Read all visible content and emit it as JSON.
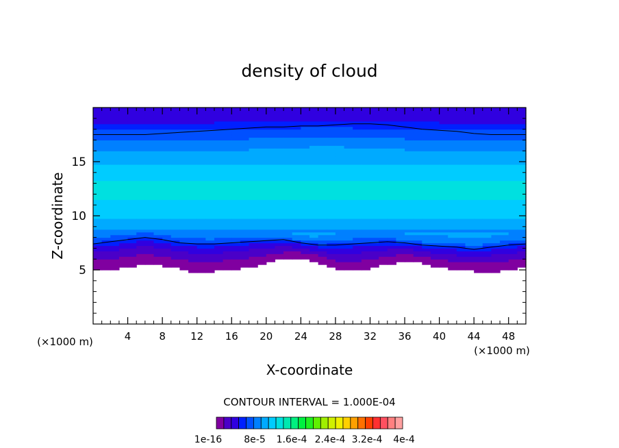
{
  "chart_data": {
    "type": "heatmap",
    "title": "density of cloud",
    "xlabel": "X-coordinate",
    "ylabel": "Z-coordinate",
    "x_unit": "(×1000 m)",
    "y_unit": "(×1000 m)",
    "xlim": [
      0,
      50
    ],
    "ylim": [
      0,
      20
    ],
    "x_ticks": [
      "4",
      "8",
      "12",
      "16",
      "20",
      "24",
      "28",
      "32",
      "36",
      "40",
      "44",
      "48"
    ],
    "y_ticks": [
      "5",
      "10",
      "15"
    ],
    "contour_interval_text": "CONTOUR INTERVAL = 1.000E-04",
    "colorbar_labels": [
      "1e-16",
      "8e-5",
      "1.6e-4",
      "2.4e-4",
      "3.2e-4",
      "4e-4"
    ],
    "colorbar_colors": [
      "#8000a0",
      "#4a00c8",
      "#3000e0",
      "#0020ff",
      "#0050ff",
      "#0080ff",
      "#00aaff",
      "#00ccff",
      "#00e0e0",
      "#00e8b0",
      "#00f080",
      "#00f040",
      "#20f020",
      "#60f000",
      "#a0f000",
      "#d0f000",
      "#f0f000",
      "#ffd000",
      "#ffa000",
      "#ff7000",
      "#ff4000",
      "#ff3030",
      "#ff5060",
      "#ff8080",
      "#ffa0a0"
    ],
    "field_profile": {
      "z": [
        4.8,
        5.5,
        6.0,
        6.5,
        7.0,
        7.5,
        8.0,
        9.0,
        10.0,
        11.0,
        12.0,
        13.0,
        14.0,
        15.0,
        16.0,
        17.0,
        17.5,
        18.0,
        18.5,
        19.0,
        20.0
      ],
      "value": [
        1e-16,
        1e-05,
        2e-05,
        3e-05,
        4e-05,
        6e-05,
        8e-05,
        0.0001,
        0.000115,
        0.000125,
        0.000132,
        0.00013,
        0.000122,
        0.00011,
        9.5e-05,
        8e-05,
        7e-05,
        6.3e-05,
        5e-05,
        4e-05,
        3.3e-05
      ]
    },
    "cloud_base_x": [
      0,
      2,
      4,
      6,
      8,
      10,
      12,
      14,
      16,
      18,
      20,
      22,
      24,
      26,
      28,
      30,
      32,
      34,
      36,
      38,
      40,
      42,
      44,
      46,
      48,
      50
    ],
    "cloud_base_z": [
      5.0,
      5.0,
      5.3,
      5.6,
      5.4,
      5.1,
      4.8,
      4.9,
      5.0,
      5.3,
      5.6,
      6.0,
      6.1,
      5.7,
      5.0,
      4.9,
      5.1,
      5.5,
      5.8,
      5.6,
      5.2,
      5.0,
      4.9,
      4.8,
      5.1,
      5.2
    ],
    "contour_lower_z": [
      7.4,
      7.6,
      7.8,
      8.0,
      7.8,
      7.5,
      7.4,
      7.4,
      7.5,
      7.6,
      7.7,
      7.8,
      7.5,
      7.3,
      7.3,
      7.4,
      7.5,
      7.6,
      7.5,
      7.3,
      7.2,
      7.1,
      6.9,
      7.1,
      7.3,
      7.4
    ],
    "contour_upper_z": [
      17.5,
      17.5,
      17.5,
      17.5,
      17.6,
      17.7,
      17.8,
      17.9,
      18.0,
      18.1,
      18.2,
      18.2,
      18.3,
      18.3,
      18.4,
      18.5,
      18.5,
      18.4,
      18.2,
      18.0,
      17.9,
      17.8,
      17.6,
      17.5,
      17.5,
      17.5
    ]
  }
}
